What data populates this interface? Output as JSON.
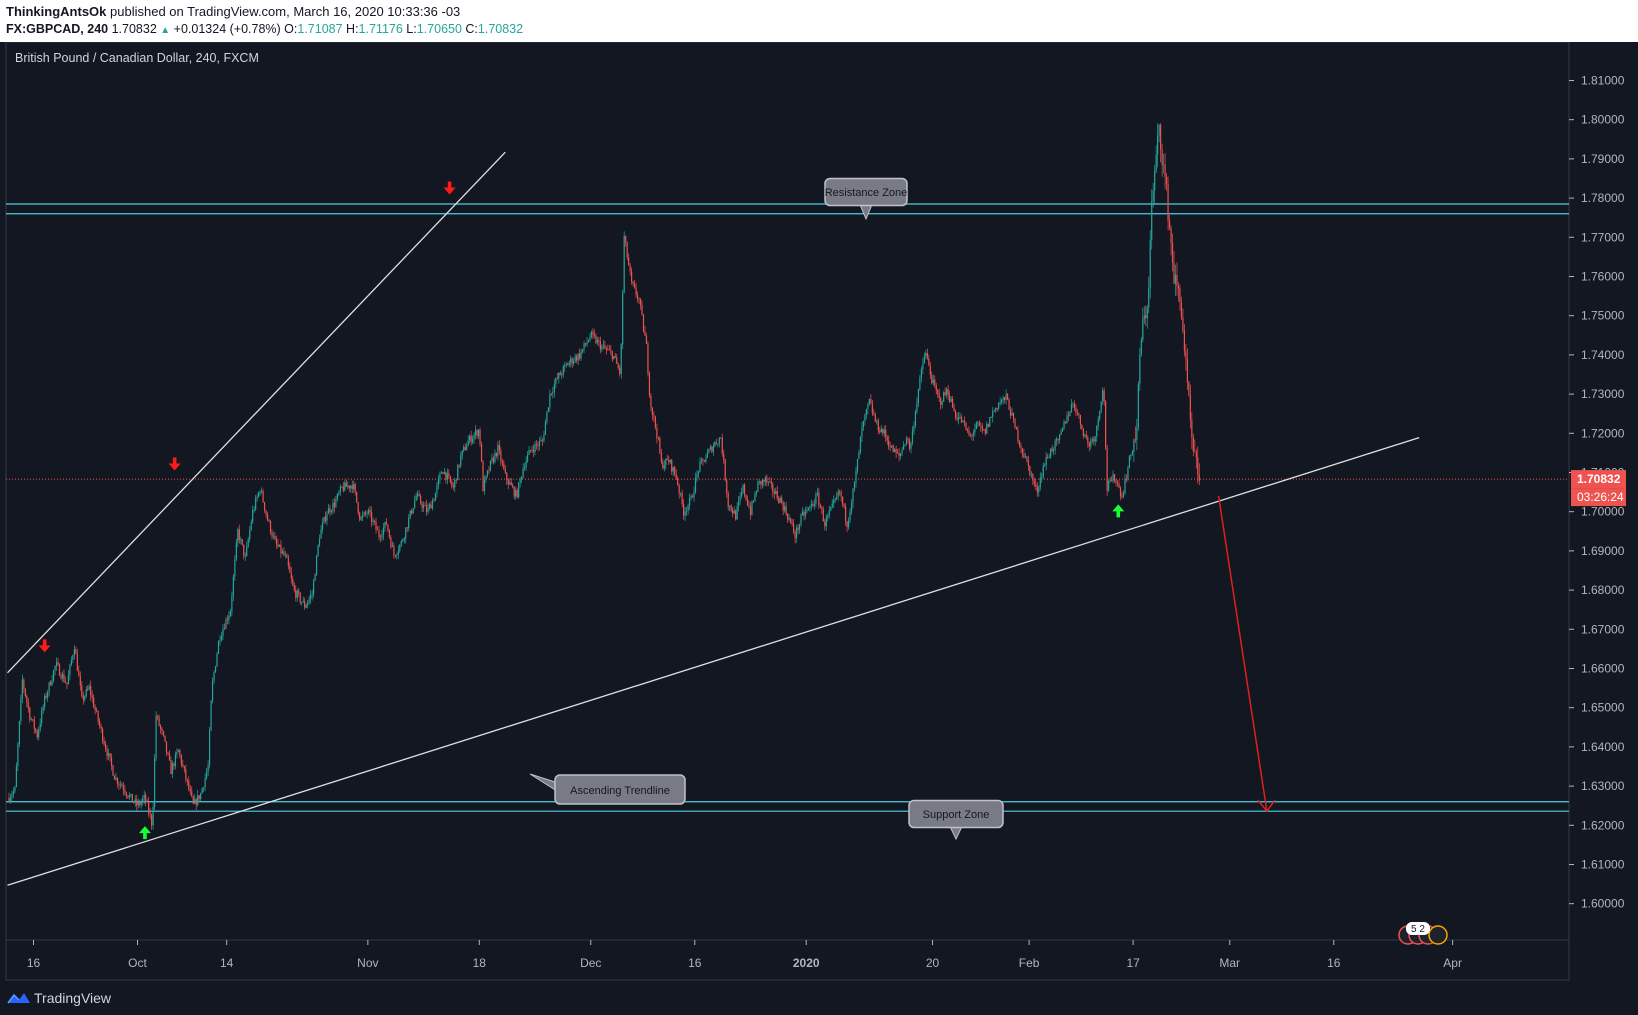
{
  "header": {
    "author": "ThinkingAntsOk",
    "published_text": "published on TradingView.com, March 16, 2020 10:33:36 -03",
    "symbol": "FX:GBPCAD, 240",
    "last": "1.70832",
    "change": "+0.01324 (+0.78%)",
    "o_label": "O:",
    "o_value": "1.71087",
    "h_label": "H:",
    "h_value": "1.71176",
    "l_label": "L:",
    "l_value": "1.70650",
    "c_label": "C:",
    "c_value": "1.70832"
  },
  "footer": {
    "brand": "TradingView"
  },
  "colors": {
    "background": "#131722",
    "up": "#26a69a",
    "down": "#ef5350",
    "zone_line": "#4dd0e1",
    "trendline": "#e0e0e0",
    "arrow_down": "#ff1a1a",
    "arrow_up": "#1aff33",
    "projection": "#e0201a",
    "price_badge": "#ef5350"
  },
  "icons": [
    "tradingview-logo-icon",
    "red-down-arrow-icon",
    "green-up-arrow-icon",
    "flag-icon"
  ],
  "chart_data": {
    "type": "candlestick",
    "title": "British Pound / Canadian Dollar, 240, FXCM",
    "xlabel": "",
    "ylabel": "",
    "ylim": [
      1.596,
      1.816
    ],
    "grid": false,
    "legend": "none",
    "y_ticks": [
      "1.81000",
      "1.80000",
      "1.79000",
      "1.78000",
      "1.77000",
      "1.76000",
      "1.75000",
      "1.74000",
      "1.73000",
      "1.72000",
      "1.71000",
      "1.70000",
      "1.69000",
      "1.68000",
      "1.67000",
      "1.66000",
      "1.65000",
      "1.64000",
      "1.63000",
      "1.62000",
      "1.61000",
      "1.60000"
    ],
    "x_ticks": [
      {
        "label": "16",
        "x": 0.0
      },
      {
        "label": "Oct",
        "x": 14.0
      },
      {
        "label": "14",
        "x": 26.0
      },
      {
        "label": "Nov",
        "x": 45.0
      },
      {
        "label": "18",
        "x": 60.0
      },
      {
        "label": "Dec",
        "x": 75.0
      },
      {
        "label": "16",
        "x": 89.0
      },
      {
        "label": "2020",
        "x": 104.0
      },
      {
        "label": "20",
        "x": 121.0
      },
      {
        "label": "Feb",
        "x": 134.0
      },
      {
        "label": "17",
        "x": 148.0
      },
      {
        "label": "Mar",
        "x": 161.0
      },
      {
        "label": "16",
        "x": 175.0
      },
      {
        "label": "Apr",
        "x": 191.0
      }
    ],
    "close_path": [
      [
        -3.5,
        1.627
      ],
      [
        -2.5,
        1.629
      ],
      [
        -1.5,
        1.657
      ],
      [
        -0.5,
        1.648
      ],
      [
        0.5,
        1.643
      ],
      [
        1.5,
        1.652
      ],
      [
        3.0,
        1.661
      ],
      [
        4.5,
        1.656
      ],
      [
        5.5,
        1.666
      ],
      [
        6.5,
        1.652
      ],
      [
        7.5,
        1.655
      ],
      [
        8.5,
        1.648
      ],
      [
        10.0,
        1.638
      ],
      [
        11.0,
        1.632
      ],
      [
        12.0,
        1.63
      ],
      [
        13.0,
        1.627
      ],
      [
        14.0,
        1.625
      ],
      [
        15.0,
        1.627
      ],
      [
        16.0,
        1.62
      ],
      [
        16.5,
        1.648
      ],
      [
        17.5,
        1.642
      ],
      [
        18.5,
        1.634
      ],
      [
        19.5,
        1.639
      ],
      [
        20.5,
        1.632
      ],
      [
        21.5,
        1.625
      ],
      [
        22.5,
        1.628
      ],
      [
        23.5,
        1.635
      ],
      [
        24.0,
        1.655
      ],
      [
        25.0,
        1.668
      ],
      [
        26.5,
        1.675
      ],
      [
        27.5,
        1.695
      ],
      [
        28.5,
        1.688
      ],
      [
        29.5,
        1.7
      ],
      [
        30.5,
        1.706
      ],
      [
        31.5,
        1.698
      ],
      [
        32.5,
        1.692
      ],
      [
        34.0,
        1.688
      ],
      [
        35.0,
        1.68
      ],
      [
        36.5,
        1.676
      ],
      [
        37.5,
        1.679
      ],
      [
        38.5,
        1.694
      ],
      [
        39.5,
        1.7
      ],
      [
        40.5,
        1.702
      ],
      [
        41.5,
        1.706
      ],
      [
        43.0,
        1.707
      ],
      [
        44.0,
        1.698
      ],
      [
        45.0,
        1.7
      ],
      [
        46.5,
        1.694
      ],
      [
        47.5,
        1.697
      ],
      [
        48.5,
        1.689
      ],
      [
        49.5,
        1.692
      ],
      [
        50.5,
        1.698
      ],
      [
        51.5,
        1.704
      ],
      [
        53.0,
        1.7
      ],
      [
        54.0,
        1.704
      ],
      [
        55.0,
        1.711
      ],
      [
        56.5,
        1.706
      ],
      [
        57.5,
        1.714
      ],
      [
        58.5,
        1.718
      ],
      [
        60.0,
        1.721
      ],
      [
        60.5,
        1.706
      ],
      [
        61.5,
        1.712
      ],
      [
        62.5,
        1.716
      ],
      [
        63.5,
        1.709
      ],
      [
        65.0,
        1.704
      ],
      [
        66.0,
        1.712
      ],
      [
        67.0,
        1.716
      ],
      [
        68.5,
        1.718
      ],
      [
        69.5,
        1.73
      ],
      [
        70.5,
        1.734
      ],
      [
        72.0,
        1.738
      ],
      [
        73.5,
        1.74
      ],
      [
        75.0,
        1.745
      ],
      [
        76.5,
        1.742
      ],
      [
        78.0,
        1.74
      ],
      [
        79.0,
        1.735
      ],
      [
        79.5,
        1.77
      ],
      [
        80.5,
        1.758
      ],
      [
        81.5,
        1.754
      ],
      [
        82.5,
        1.742
      ],
      [
        83.0,
        1.728
      ],
      [
        84.0,
        1.719
      ],
      [
        84.5,
        1.712
      ],
      [
        85.5,
        1.713
      ],
      [
        86.5,
        1.709
      ],
      [
        87.5,
        1.7
      ],
      [
        88.5,
        1.703
      ],
      [
        89.5,
        1.711
      ],
      [
        90.5,
        1.714
      ],
      [
        91.5,
        1.717
      ],
      [
        92.5,
        1.719
      ],
      [
        93.5,
        1.702
      ],
      [
        94.5,
        1.699
      ],
      [
        95.5,
        1.706
      ],
      [
        96.5,
        1.7
      ],
      [
        97.5,
        1.707
      ],
      [
        98.5,
        1.708
      ],
      [
        100.5,
        1.703
      ],
      [
        101.5,
        1.699
      ],
      [
        102.5,
        1.694
      ],
      [
        103.5,
        1.699
      ],
      [
        104.5,
        1.701
      ],
      [
        105.5,
        1.704
      ],
      [
        106.5,
        1.697
      ],
      [
        107.5,
        1.701
      ],
      [
        108.5,
        1.705
      ],
      [
        109.5,
        1.697
      ],
      [
        110.5,
        1.707
      ],
      [
        111.5,
        1.721
      ],
      [
        112.5,
        1.728
      ],
      [
        113.5,
        1.722
      ],
      [
        114.5,
        1.72
      ],
      [
        115.5,
        1.716
      ],
      [
        116.5,
        1.714
      ],
      [
        117.5,
        1.719
      ],
      [
        118.0,
        1.716
      ],
      [
        119.0,
        1.73
      ],
      [
        120.0,
        1.741
      ],
      [
        121.0,
        1.733
      ],
      [
        122.0,
        1.728
      ],
      [
        123.0,
        1.731
      ],
      [
        124.0,
        1.725
      ],
      [
        125.0,
        1.723
      ],
      [
        126.0,
        1.719
      ],
      [
        127.0,
        1.722
      ],
      [
        128.0,
        1.72
      ],
      [
        129.0,
        1.725
      ],
      [
        130.0,
        1.728
      ],
      [
        131.0,
        1.729
      ],
      [
        132.0,
        1.722
      ],
      [
        133.0,
        1.716
      ],
      [
        134.0,
        1.711
      ],
      [
        135.0,
        1.705
      ],
      [
        136.0,
        1.712
      ],
      [
        137.0,
        1.716
      ],
      [
        138.0,
        1.718
      ],
      [
        139.0,
        1.724
      ],
      [
        140.0,
        1.728
      ],
      [
        141.0,
        1.722
      ],
      [
        142.0,
        1.717
      ],
      [
        143.0,
        1.72
      ],
      [
        144.0,
        1.733
      ],
      [
        144.5,
        1.706
      ],
      [
        145.5,
        1.709
      ],
      [
        146.5,
        1.704
      ],
      [
        147.5,
        1.713
      ],
      [
        148.5,
        1.721
      ],
      [
        149.0,
        1.744
      ],
      [
        150.0,
        1.754
      ],
      [
        150.5,
        1.778
      ],
      [
        151.5,
        1.798
      ],
      [
        152.5,
        1.781
      ],
      [
        153.5,
        1.76
      ],
      [
        154.5,
        1.752
      ],
      [
        155.0,
        1.739
      ],
      [
        156.0,
        1.715
      ],
      [
        157.0,
        1.708
      ]
    ],
    "resistance_zone": {
      "label": "Resistance Zone",
      "top": 1.7785,
      "bottom": 1.776
    },
    "support_zone": {
      "label": "Support Zone",
      "top": 1.626,
      "bottom": 1.6236
    },
    "ascending_trendline": {
      "label": "Ascending Trendline",
      "from": [
        -3.5,
        1.6047
      ],
      "to": [
        186.5,
        1.7189
      ]
    },
    "upper_trendline": {
      "from": [
        -3.5,
        1.6589
      ],
      "to": [
        63.5,
        1.7917
      ]
    },
    "current_price": {
      "value": "1.70832",
      "countdown": "03:26:24"
    },
    "projection": {
      "from": [
        159.5,
        1.704
      ],
      "to": [
        166.0,
        1.6236
      ]
    },
    "down_arrows": [
      [
        1.5,
        1.6654
      ],
      [
        19.0,
        1.7118
      ],
      [
        56.0,
        1.7822
      ]
    ],
    "up_arrows": [
      [
        15.0,
        1.6185
      ],
      [
        146.0,
        1.7006
      ]
    ],
    "event_badge": {
      "label": "5 2"
    }
  }
}
